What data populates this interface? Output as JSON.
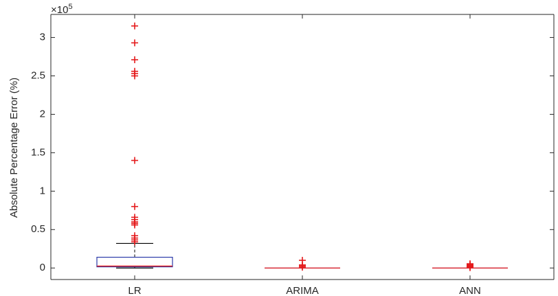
{
  "chart_data": {
    "type": "boxplot",
    "title": "",
    "xlabel": "",
    "ylabel": "Absolute Percentage Error (%)",
    "y_multiplier_label": "×10",
    "y_multiplier_exponent": "5",
    "y_scale_factor": 100000,
    "ylim": [
      -15000,
      330000
    ],
    "yticks": [
      0,
      50000,
      100000,
      150000,
      200000,
      250000,
      300000
    ],
    "ytick_labels": [
      "0",
      "0.5",
      "1",
      "1.5",
      "2",
      "2.5",
      "3"
    ],
    "categories": [
      "LR",
      "ARIMA",
      "ANN"
    ],
    "grid": false,
    "boxes": [
      {
        "category": "LR",
        "q1": 1500,
        "median": 2500,
        "q3": 14000,
        "whisker_low": 0,
        "whisker_high": 32000,
        "outliers": [
          34000,
          36500,
          39000,
          42000,
          56000,
          58000,
          60000,
          63000,
          66000,
          80000,
          140000,
          250000,
          253000,
          256000,
          271000,
          293000,
          315000
        ]
      },
      {
        "category": "ARIMA",
        "q1": 0,
        "median": 0,
        "q3": 0,
        "whisker_low": 0,
        "whisker_high": 0,
        "outliers": [
          1000,
          2500,
          4000,
          10000
        ]
      },
      {
        "category": "ANN",
        "q1": 0,
        "median": 0,
        "q3": 0,
        "whisker_low": 0,
        "whisker_high": 0,
        "outliers": [
          500,
          1500,
          2500,
          3500,
          4500,
          5500
        ]
      }
    ],
    "colors": {
      "box": "#2b3aa8",
      "median": "#e41a1c",
      "whisker": "#000000",
      "outlier": "#e41a1c",
      "axis": "#262626"
    }
  }
}
